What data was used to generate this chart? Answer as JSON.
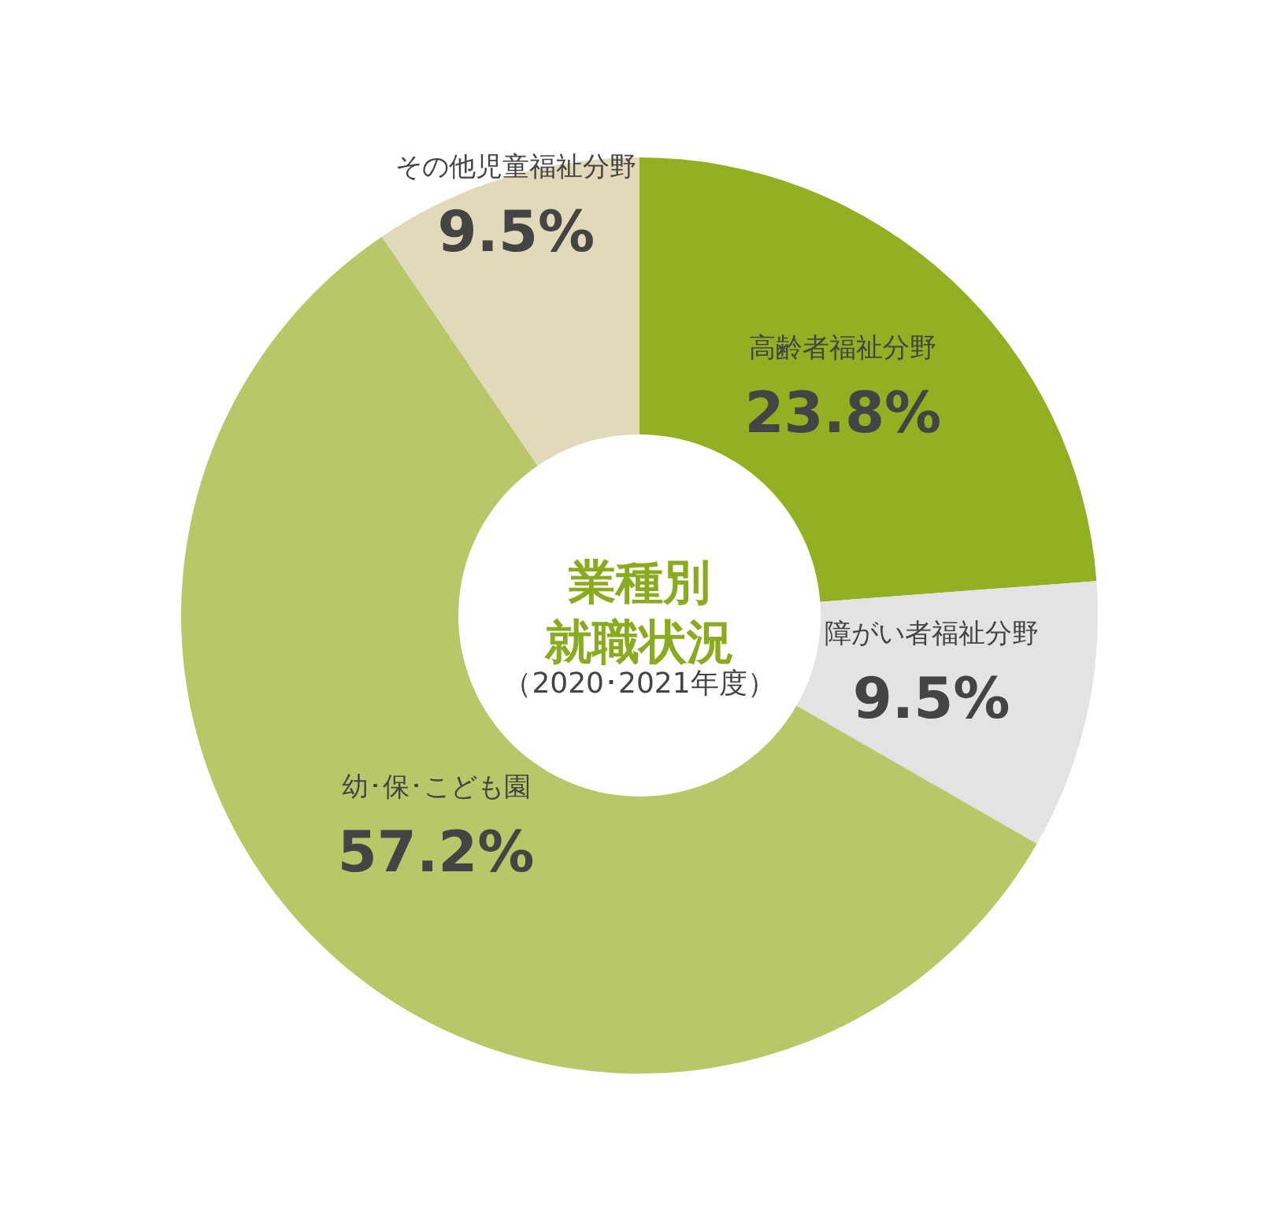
{
  "chart_data": {
    "type": "donut",
    "title": "業種別就職状況",
    "subtitle": "（2020･2021年度）",
    "categories": [
      "高齢者福祉分野",
      "障がい者福祉分野",
      "幼･保･こども園",
      "その他児童福祉分野"
    ],
    "values": [
      23.8,
      9.5,
      57.2,
      9.5
    ],
    "colors": [
      "#92b022",
      "#e3e3e3",
      "#b8c868",
      "#e2d9bb"
    ],
    "value_labels": [
      "23.8%",
      "9.5%",
      "57.2%",
      "9.5%"
    ]
  }
}
